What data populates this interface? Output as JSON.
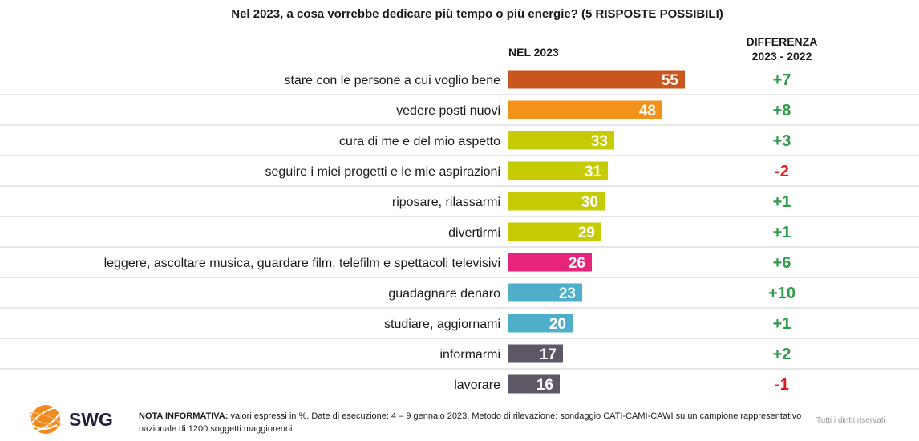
{
  "chart_data": {
    "type": "bar",
    "orientation": "horizontal",
    "title": "Nel 2023, a cosa vorrebbe dedicare più tempo o più energie? (5 RISPOSTE POSSIBILI)",
    "column_header_value": "NEL 2023",
    "column_header_diff_line1": "DIFFERENZA",
    "column_header_diff_line2": "2023 - 2022",
    "xlim": [
      0,
      100
    ],
    "categories": [
      "stare con le persone a cui voglio bene",
      "vedere posti nuovi",
      "cura di me e del mio aspetto",
      "seguire i miei progetti e le mie aspirazioni",
      "riposare, rilassarmi",
      "divertirmi",
      "leggere, ascoltare musica, guardare film, telefilm e spettacoli televisivi",
      "guadagnare denaro",
      "studiare, aggiornami",
      "informarmi",
      "lavorare"
    ],
    "values": [
      55,
      48,
      33,
      31,
      30,
      29,
      26,
      23,
      20,
      17,
      16
    ],
    "differences": [
      "+7",
      "+8",
      "+3",
      "-2",
      "+1",
      "+1",
      "+6",
      "+10",
      "+1",
      "+2",
      "-1"
    ],
    "bar_colors": [
      "#c9561c",
      "#f2921a",
      "#c5cc05",
      "#c5cc05",
      "#c5cc05",
      "#c5cc05",
      "#e8237a",
      "#4faec9",
      "#4faec9",
      "#5f5666",
      "#5f5666"
    ],
    "positive_color": "#2e9a4a",
    "negative_color": "#e01b1b",
    "grid": false
  },
  "footer": {
    "brand": "SWG",
    "note_bold": "NOTA INFORMATIVA:",
    "note_text": " valori espressi in %. Date di esecuzione: 4 – 9 gennaio 2023. Metodo di rilevazione: sondaggio CATI-CAMI-CAWI su un campione rappresentativo nazionale di 1200 soggetti maggiorenni.",
    "rights": "Tutti i diritti riservati"
  }
}
